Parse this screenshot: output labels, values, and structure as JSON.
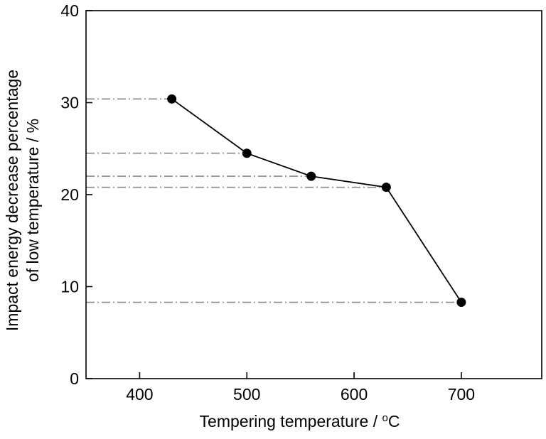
{
  "chart_data": {
    "type": "line",
    "title": "",
    "xlabel_prefix": "Tempering temperature / ",
    "xlabel_sup": "o",
    "xlabel_suffix": "C",
    "ylabel_line1": "Impact energy decrease percentage",
    "ylabel_line2": "of low temperature / %",
    "xlim": [
      350,
      775
    ],
    "ylim": [
      0,
      40
    ],
    "xticks": [
      400,
      500,
      600,
      700
    ],
    "yticks": [
      0,
      10,
      20,
      30,
      40
    ],
    "xtick_labels": [
      "400",
      "500",
      "600",
      "700"
    ],
    "ytick_labels": [
      "0",
      "10",
      "20",
      "30",
      "40"
    ],
    "grid": false,
    "series": [
      {
        "x": [
          430,
          500,
          560,
          630,
          700
        ],
        "y": [
          30.4,
          24.5,
          22.0,
          20.8,
          8.3
        ],
        "marker": "filled-circle",
        "color": "#000000"
      }
    ],
    "reference_lines": {
      "style": "dash-dot",
      "color": "#888888",
      "orientation": "horizontal",
      "from_x": 350,
      "note_values": [
        30.4,
        24.5,
        22.0,
        20.8,
        8.3
      ]
    }
  }
}
